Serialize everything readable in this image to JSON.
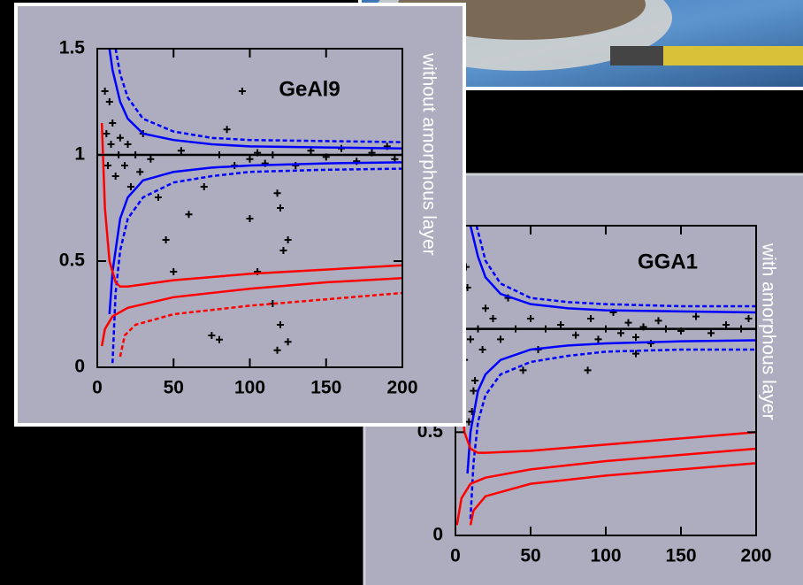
{
  "chart_data": [
    {
      "type": "scatter",
      "title": "GeAl9",
      "side_label": "without amorphous layer",
      "xlim": [
        0,
        200
      ],
      "ylim": [
        0,
        1.5
      ],
      "xticks": [
        0,
        50,
        100,
        150,
        200
      ],
      "yticks": [
        0,
        0.5,
        1,
        1.5
      ],
      "series": [
        {
          "mode": "markers",
          "color": "#000000",
          "x": [
            5,
            6,
            7,
            8,
            9,
            10,
            12,
            14,
            15,
            18,
            20,
            22,
            25,
            28,
            30,
            35,
            40,
            45,
            50,
            55,
            60,
            70,
            80,
            85,
            90,
            95,
            100,
            105,
            110,
            115,
            118,
            120,
            122,
            125,
            120,
            118,
            115,
            130,
            140,
            150,
            160,
            170,
            180,
            190,
            195,
            75,
            80,
            100,
            105,
            125
          ],
          "values": [
            1.3,
            1.1,
            0.95,
            1.25,
            1.05,
            1.15,
            0.9,
            1.0,
            1.08,
            0.95,
            1.05,
            0.85,
            1.0,
            0.92,
            1.1,
            0.98,
            0.8,
            0.6,
            0.45,
            1.02,
            0.72,
            0.85,
            1.0,
            1.12,
            0.95,
            1.3,
            0.98,
            1.01,
            0.96,
            1.0,
            0.82,
            0.75,
            0.55,
            0.6,
            0.2,
            0.08,
            0.3,
            0.95,
            1.02,
            0.99,
            1.03,
            0.97,
            1.01,
            1.04,
            0.98,
            0.15,
            0.13,
            0.7,
            0.45,
            0.12
          ]
        },
        {
          "mode": "lines",
          "color": "#000000",
          "x": [
            0,
            200
          ],
          "values": [
            1,
            1
          ]
        },
        {
          "mode": "lines",
          "color": "#0000ff",
          "x": [
            8,
            10,
            15,
            20,
            30,
            50,
            75,
            100,
            150,
            200
          ],
          "values": [
            1.5,
            1.4,
            1.25,
            1.17,
            1.1,
            1.07,
            1.05,
            1.04,
            1.035,
            1.03
          ]
        },
        {
          "mode": "lines",
          "color": "#0000ff",
          "x": [
            8,
            10,
            15,
            20,
            30,
            50,
            75,
            100,
            150,
            200
          ],
          "values": [
            0.25,
            0.45,
            0.7,
            0.8,
            0.88,
            0.92,
            0.94,
            0.95,
            0.96,
            0.965
          ]
        },
        {
          "mode": "lines",
          "dash": true,
          "color": "#0000ff",
          "x": [
            12,
            15,
            20,
            30,
            50,
            75,
            100,
            150,
            200
          ],
          "values": [
            1.5,
            1.38,
            1.27,
            1.17,
            1.11,
            1.08,
            1.07,
            1.065,
            1.06
          ]
        },
        {
          "mode": "lines",
          "dash": true,
          "color": "#0000ff",
          "x": [
            10,
            12,
            15,
            20,
            30,
            50,
            75,
            100,
            150,
            200
          ],
          "values": [
            0.02,
            0.35,
            0.55,
            0.7,
            0.8,
            0.87,
            0.9,
            0.92,
            0.93,
            0.935
          ]
        },
        {
          "mode": "lines",
          "color": "#ff0000",
          "x": [
            3,
            5,
            8,
            12,
            15,
            20,
            50,
            100,
            150,
            200
          ],
          "values": [
            1.15,
            0.75,
            0.5,
            0.4,
            0.38,
            0.38,
            0.41,
            0.44,
            0.46,
            0.48
          ]
        },
        {
          "mode": "lines",
          "color": "#ff0000",
          "x": [
            3,
            5,
            10,
            20,
            50,
            100,
            150,
            200
          ],
          "values": [
            0.1,
            0.18,
            0.24,
            0.28,
            0.33,
            0.37,
            0.4,
            0.42
          ]
        },
        {
          "mode": "lines",
          "dash": true,
          "color": "#ff0000",
          "x": [
            15,
            18,
            25,
            50,
            100,
            150,
            200
          ],
          "values": [
            0.05,
            0.15,
            0.2,
            0.25,
            0.29,
            0.32,
            0.35
          ]
        }
      ]
    },
    {
      "type": "scatter",
      "title": "GGA1",
      "side_label": "with amorphous layer",
      "xlim": [
        0,
        200
      ],
      "ylim": [
        0,
        1.5
      ],
      "xticks": [
        0,
        50,
        100,
        150,
        200
      ],
      "yticks": [
        0,
        0.5
      ],
      "series": [
        {
          "mode": "markers",
          "color": "#000000",
          "x": [
            8,
            10,
            12,
            15,
            18,
            20,
            25,
            30,
            35,
            40,
            45,
            50,
            55,
            60,
            70,
            80,
            90,
            95,
            100,
            105,
            110,
            115,
            120,
            125,
            130,
            135,
            140,
            150,
            160,
            170,
            180,
            190,
            195,
            9,
            11,
            13,
            88,
            120,
            6,
            7
          ],
          "values": [
            1.2,
            0.95,
            0.7,
            1.0,
            0.9,
            1.1,
            1.05,
            0.95,
            1.15,
            1.0,
            0.8,
            1.05,
            0.9,
            1.0,
            1.02,
            0.97,
            1.05,
            0.95,
            1.0,
            1.08,
            0.98,
            1.03,
            0.96,
            1.01,
            0.93,
            1.04,
            1.0,
            0.99,
            1.06,
            0.98,
            1.02,
            1.0,
            1.05,
            0.55,
            0.6,
            0.75,
            0.8,
            0.88,
            0.85,
            1.3
          ]
        },
        {
          "mode": "lines",
          "color": "#000000",
          "x": [
            0,
            200
          ],
          "values": [
            1,
            1
          ]
        },
        {
          "mode": "lines",
          "color": "#0000ff",
          "x": [
            10,
            15,
            20,
            30,
            50,
            75,
            100,
            150,
            200
          ],
          "values": [
            1.5,
            1.35,
            1.25,
            1.17,
            1.12,
            1.1,
            1.09,
            1.085,
            1.08
          ]
        },
        {
          "mode": "lines",
          "color": "#0000ff",
          "x": [
            8,
            10,
            15,
            20,
            30,
            50,
            75,
            100,
            150,
            200
          ],
          "values": [
            0.3,
            0.5,
            0.7,
            0.78,
            0.85,
            0.9,
            0.92,
            0.93,
            0.94,
            0.945
          ]
        },
        {
          "mode": "lines",
          "dash": true,
          "color": "#0000ff",
          "x": [
            14,
            20,
            30,
            50,
            75,
            100,
            150,
            200
          ],
          "values": [
            1.5,
            1.33,
            1.22,
            1.15,
            1.13,
            1.12,
            1.11,
            1.11
          ]
        },
        {
          "mode": "lines",
          "dash": true,
          "color": "#0000ff",
          "x": [
            10,
            12,
            15,
            20,
            30,
            50,
            75,
            100,
            150,
            200
          ],
          "values": [
            0.08,
            0.35,
            0.55,
            0.68,
            0.78,
            0.84,
            0.87,
            0.89,
            0.9,
            0.9
          ]
        },
        {
          "mode": "lines",
          "color": "#ff0000",
          "x": [
            3,
            6,
            10,
            15,
            20,
            50,
            100,
            150,
            200
          ],
          "values": [
            0.75,
            0.5,
            0.42,
            0.4,
            0.4,
            0.41,
            0.44,
            0.47,
            0.5
          ]
        },
        {
          "mode": "lines",
          "color": "#ff0000",
          "x": [
            1,
            4,
            10,
            20,
            50,
            100,
            150,
            200
          ],
          "values": [
            0.05,
            0.18,
            0.25,
            0.28,
            0.32,
            0.36,
            0.39,
            0.42
          ]
        },
        {
          "mode": "lines",
          "color": "#ff0000",
          "x": [
            10,
            12,
            20,
            50,
            100,
            150,
            200
          ],
          "values": [
            0.05,
            0.12,
            0.19,
            0.25,
            0.29,
            0.32,
            0.35
          ]
        }
      ]
    }
  ]
}
